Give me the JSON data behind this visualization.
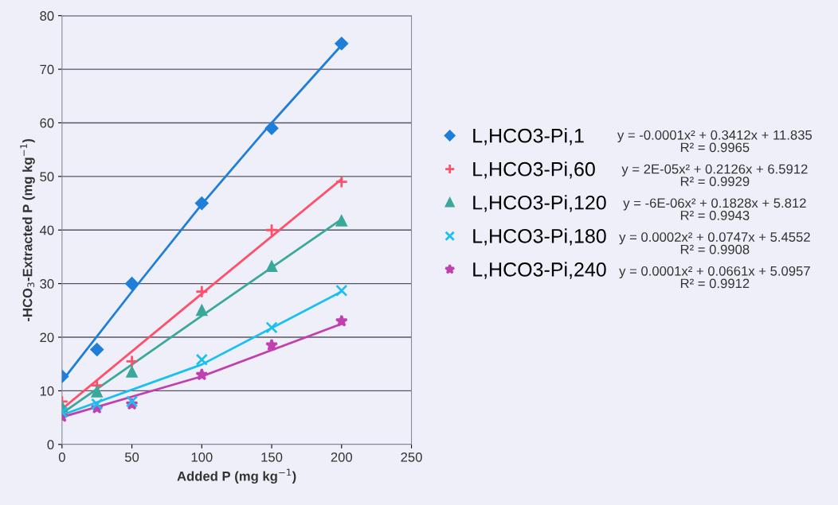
{
  "chart_data": {
    "type": "scatter",
    "xlabel": "Added P (mg kg$^{−1}$)",
    "ylabel": "-HCO$_{3}$-Extracted P (mg kg$^{−1}$)",
    "xlim": [
      0,
      250
    ],
    "xticks": [
      0,
      50,
      100,
      150,
      200,
      250
    ],
    "ylim": [
      0,
      80
    ],
    "yticks": [
      0,
      10,
      20,
      30,
      40,
      50,
      60,
      70,
      80
    ],
    "grid": "y",
    "legend": "right",
    "x": [
      0,
      25,
      50,
      100,
      150,
      200
    ],
    "series": [
      {
        "name": "L,HCO3-Pi,1",
        "color": "#1f7fd8",
        "marker": "diamond",
        "values": [
          12.7,
          17.7,
          30,
          45,
          59,
          74.8
        ]
      },
      {
        "name": "L,HCO3-Pi,60",
        "color": "#ff4f6a",
        "marker": "plus",
        "values": [
          8,
          11,
          15.5,
          28.5,
          40,
          49
        ]
      },
      {
        "name": "L,HCO3-Pi,120",
        "color": "#3aa89a",
        "marker": "triangle",
        "values": [
          7,
          9.8,
          13.5,
          25,
          33.2,
          41.7
        ]
      },
      {
        "name": "L,HCO3-Pi,180",
        "color": "#19c0f0",
        "marker": "cross",
        "values": [
          6,
          7.5,
          8,
          15.8,
          21.8,
          28.7
        ]
      },
      {
        "name": "L,HCO3-Pi,240",
        "color": "#c040b0",
        "marker": "star",
        "values": [
          5.2,
          6.8,
          7.5,
          13,
          18.5,
          23
        ]
      },
      {
        "type": "line",
        "color": "#1f7fd8",
        "x": [
          0,
          50,
          100,
          150,
          200
        ],
        "values": [
          11.8,
          28.5,
          44.8,
          60,
          74.5
        ]
      },
      {
        "type": "line",
        "color": "#ff4f6a",
        "x": [
          0,
          100,
          200
        ],
        "values": [
          6.6,
          28.1,
          49.5
        ]
      },
      {
        "type": "line",
        "color": "#3aa89a",
        "x": [
          0,
          100,
          200
        ],
        "values": [
          5.8,
          24,
          42
        ]
      },
      {
        "type": "line",
        "color": "#19c0f0",
        "x": [
          0,
          100,
          200
        ],
        "values": [
          5.5,
          14.9,
          28.5
        ]
      },
      {
        "type": "line",
        "color": "#c040b0",
        "x": [
          0,
          100,
          200
        ],
        "values": [
          5.1,
          12.7,
          22.5
        ]
      }
    ],
    "annotations": [
      "y = -0.0001x² + 0.3412x + 11.835\nR² = 0.9965",
      "y = 2E-05x² + 0.2126x + 6.5912\nR² = 0.9929",
      "y = -6E-06x² + 0.1828x + 5.812\nR² = 0.9943",
      "y = 0.0002x² + 0.0747x + 5.4552\nR² = 0.9908",
      "y = 0.0001x² + 0.0661x + 5.0957\nR² = 0.9912"
    ]
  }
}
